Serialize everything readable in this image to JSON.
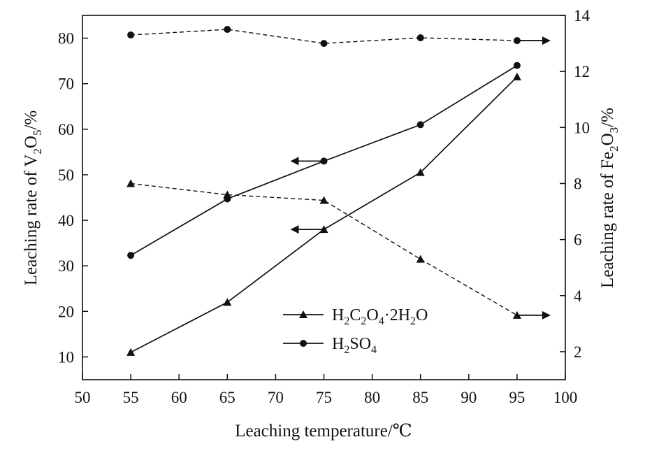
{
  "chart_data": {
    "type": "line",
    "x": [
      55,
      65,
      75,
      85,
      95
    ],
    "xlabel": "Leaching temperature/℃",
    "xlim": [
      50,
      100
    ],
    "xticks": [
      50,
      55,
      60,
      65,
      70,
      75,
      80,
      85,
      90,
      95,
      100
    ],
    "ylabel_left": {
      "pre": "Leaching rate of V",
      "sub1": "2",
      "mid": "O",
      "sub2": "5",
      "post": "/%"
    },
    "ylim_left": [
      5,
      85
    ],
    "yticks_left": [
      10,
      20,
      30,
      40,
      50,
      60,
      70,
      80
    ],
    "ylabel_right": {
      "pre": "Leaching rate of Fe",
      "sub1": "2",
      "mid": "O",
      "sub2": "3",
      "post": "/%"
    },
    "ylim_right": [
      1,
      14
    ],
    "yticks_right": [
      2,
      4,
      6,
      8,
      10,
      12,
      14
    ],
    "legend_position": "bottom-center",
    "series": [
      {
        "name": "H2C2O4·2H2O",
        "marker": "triangle",
        "axis": "left",
        "line": "solid",
        "values": [
          11,
          22,
          38,
          50.5,
          71.5
        ]
      },
      {
        "name": "H2SO4",
        "marker": "circle",
        "axis": "left",
        "line": "solid",
        "values": [
          32.3,
          44.7,
          53,
          61,
          74
        ]
      },
      {
        "name": "",
        "marker": "triangle",
        "axis": "right",
        "line": "dashed",
        "values": [
          8,
          7.6,
          7.4,
          5.3,
          3.3
        ]
      },
      {
        "name": "",
        "marker": "circle",
        "axis": "right",
        "line": "dashed",
        "values": [
          13.3,
          13.5,
          13,
          13.2,
          13.1
        ]
      }
    ],
    "legend": [
      {
        "marker": "triangle",
        "parts": [
          [
            "H",
            ""
          ],
          [
            "2",
            "sub"
          ],
          [
            "C",
            ""
          ],
          [
            "2",
            "sub"
          ],
          [
            "O",
            ""
          ],
          [
            "4",
            "sub"
          ],
          [
            "·2H",
            ""
          ],
          [
            "2",
            "sub"
          ],
          [
            "O",
            ""
          ]
        ]
      },
      {
        "marker": "circle",
        "parts": [
          [
            "H",
            ""
          ],
          [
            "2",
            "sub"
          ],
          [
            "SO",
            ""
          ],
          [
            "4",
            "sub"
          ]
        ]
      }
    ],
    "annotations": [
      {
        "type": "arrow",
        "direction": "left",
        "x": 75,
        "y": 53,
        "axis": "left"
      },
      {
        "type": "arrow",
        "direction": "left",
        "x": 75,
        "y": 38,
        "axis": "left"
      },
      {
        "type": "arrow",
        "direction": "right",
        "x": 95,
        "y": 13.1,
        "axis": "right"
      },
      {
        "type": "arrow",
        "direction": "right",
        "x": 95,
        "y": 3.3,
        "axis": "right"
      }
    ]
  }
}
